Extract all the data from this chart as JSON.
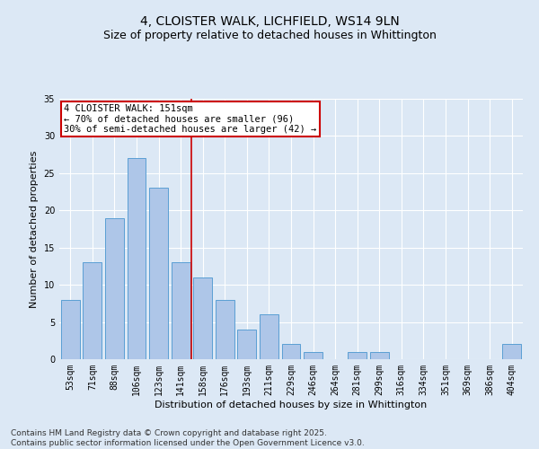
{
  "title": "4, CLOISTER WALK, LICHFIELD, WS14 9LN",
  "subtitle": "Size of property relative to detached houses in Whittington",
  "xlabel": "Distribution of detached houses by size in Whittington",
  "ylabel": "Number of detached properties",
  "categories": [
    "53sqm",
    "71sqm",
    "88sqm",
    "106sqm",
    "123sqm",
    "141sqm",
    "158sqm",
    "176sqm",
    "193sqm",
    "211sqm",
    "229sqm",
    "246sqm",
    "264sqm",
    "281sqm",
    "299sqm",
    "316sqm",
    "334sqm",
    "351sqm",
    "369sqm",
    "386sqm",
    "404sqm"
  ],
  "values": [
    8,
    13,
    19,
    27,
    23,
    13,
    11,
    8,
    4,
    6,
    2,
    1,
    0,
    1,
    1,
    0,
    0,
    0,
    0,
    0,
    2
  ],
  "bar_color": "#aec6e8",
  "bar_edge_color": "#5a9fd4",
  "background_color": "#dce8f5",
  "grid_color": "#ffffff",
  "property_line_x": 5.5,
  "annotation_text": "4 CLOISTER WALK: 151sqm\n← 70% of detached houses are smaller (96)\n30% of semi-detached houses are larger (42) →",
  "annotation_box_color": "#ffffff",
  "annotation_box_edge_color": "#cc0000",
  "vline_color": "#cc0000",
  "ylim": [
    0,
    35
  ],
  "yticks": [
    0,
    5,
    10,
    15,
    20,
    25,
    30,
    35
  ],
  "footer": "Contains HM Land Registry data © Crown copyright and database right 2025.\nContains public sector information licensed under the Open Government Licence v3.0.",
  "title_fontsize": 10,
  "subtitle_fontsize": 9,
  "axis_label_fontsize": 8,
  "tick_fontsize": 7,
  "annotation_fontsize": 7.5,
  "footer_fontsize": 6.5
}
